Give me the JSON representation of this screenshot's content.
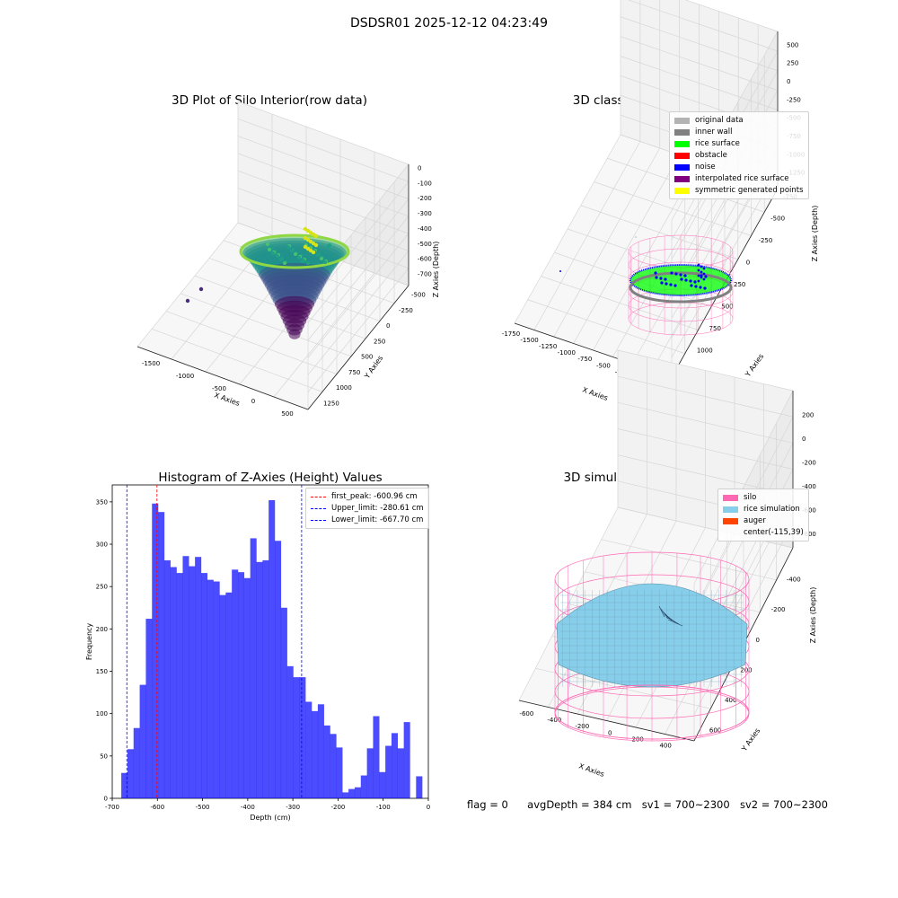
{
  "figure": {
    "suptitle": "DSDSR01 2025-12-12 04:23:49",
    "status": {
      "flag": "flag = 0",
      "avg_depth": "avgDepth = 384 cm",
      "sv1": "sv1 = 700~2300",
      "sv2": "sv2 = 700~2300"
    }
  },
  "plot1": {
    "title": "3D Plot of Silo Interior(row data)",
    "xlabel": "X Axies",
    "ylabel": "Y Axies",
    "zlabel": "Z Axies (Depth)",
    "xticks": [
      "-1500",
      "-1000",
      "-500",
      "0",
      "500"
    ],
    "yticks": [
      "-500",
      "-250",
      "0",
      "250",
      "500",
      "750",
      "1000",
      "1250"
    ],
    "zticks": [
      "0",
      "-100",
      "-200",
      "-300",
      "-400",
      "-500",
      "-600",
      "-700"
    ],
    "colormap": "viridis"
  },
  "plot2": {
    "title": "3D classify of Silo Interior",
    "xlabel": "X Axies",
    "ylabel": "Y Axies",
    "zlabel": "Z Axies (Depth)",
    "xticks": [
      "-1750",
      "-1500",
      "-1250",
      "-1000",
      "-750",
      "-500",
      "-250",
      "0",
      "250"
    ],
    "yticks": [
      "-750",
      "-500",
      "-250",
      "0",
      "250",
      "500",
      "750",
      "1000",
      "1250"
    ],
    "zticks": [
      "500",
      "250",
      "0",
      "-250",
      "-500",
      "-750",
      "-1000",
      "-1250"
    ],
    "legend": [
      {
        "label": "original data",
        "color": "#b3b3b3"
      },
      {
        "label": "inner wall",
        "color": "#808080"
      },
      {
        "label": "rice surface",
        "color": "#00ff00"
      },
      {
        "label": "obstacle",
        "color": "#ff0000"
      },
      {
        "label": "noise",
        "color": "#0000ff"
      },
      {
        "label": "interpolated rice surface",
        "color": "#800080"
      },
      {
        "label": "symmetric generated points",
        "color": "#ffff00"
      }
    ]
  },
  "plot4": {
    "title": "3D simulation of Silo Interior",
    "xlabel": "X Axies",
    "ylabel": "Y Axies",
    "zlabel": "Z Axies (Depth)",
    "xticks": [
      "-600",
      "-400",
      "-200",
      "0",
      "200",
      "400"
    ],
    "yticks": [
      "-400",
      "-200",
      "0",
      "200",
      "400",
      "600"
    ],
    "zticks": [
      "200",
      "0",
      "-200",
      "-400",
      "-600",
      "-800"
    ],
    "legend": [
      {
        "label": "silo",
        "color": "#ff69b4"
      },
      {
        "label": "rice simulation",
        "color": "#87ceeb"
      },
      {
        "label": "auger",
        "color": "#ff4500"
      },
      {
        "label": "center(-115,39)",
        "color": ""
      }
    ]
  },
  "chart_data": [
    {
      "type": "bar",
      "title": "Histogram of Z-Axies (Height) Values",
      "xlabel": "Depth (cm)",
      "ylabel": "Frequency",
      "xlim": [
        -700,
        0
      ],
      "ylim": [
        0,
        370
      ],
      "xticks": [
        -700,
        -600,
        -500,
        -400,
        -300,
        -200,
        -100,
        0
      ],
      "yticks": [
        0,
        50,
        100,
        150,
        200,
        250,
        300,
        350
      ],
      "color": "#0000ff",
      "bins": {
        "start": -680,
        "width": 13.6,
        "values": [
          30,
          58,
          83,
          134,
          212,
          348,
          338,
          281,
          273,
          266,
          286,
          274,
          285,
          266,
          258,
          256,
          240,
          243,
          270,
          267,
          260,
          307,
          279,
          281,
          352,
          304,
          225,
          156,
          143,
          143,
          114,
          103,
          111,
          86,
          76,
          60,
          7,
          11,
          13,
          27,
          59,
          97,
          31,
          62,
          77,
          59,
          90,
          0,
          26
        ]
      },
      "lines": [
        {
          "name": "first_peak: -600.96 cm",
          "x": -600.96,
          "color": "#ff0000"
        },
        {
          "name": "Upper_limit: -280.61 cm",
          "x": -280.61,
          "color": "#0000ff"
        },
        {
          "name": "Lower_limit: -667.70 cm",
          "x": -667.7,
          "color": "#0000ff"
        }
      ]
    }
  ]
}
